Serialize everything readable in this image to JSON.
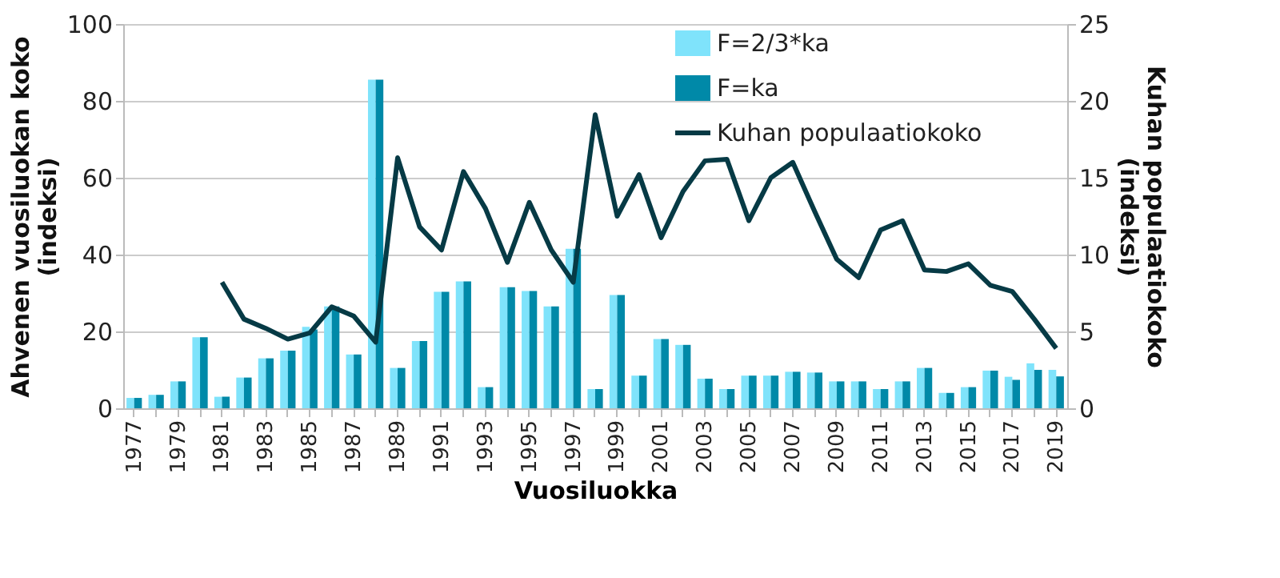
{
  "chart_data": {
    "type": "bar",
    "xlabel": "Vuosiluokka",
    "ylabel": "Ahvenen vuosiluokan koko\n(indeksi)",
    "y2label": "Kuhan populaatiokoko\n(indeksi)",
    "categories": [
      "1977",
      null,
      "1979",
      null,
      "1981",
      null,
      "1983",
      null,
      "1985",
      null,
      "1987",
      null,
      "1989",
      null,
      "1991",
      null,
      "1993",
      null,
      "1995",
      null,
      "1997",
      null,
      "1999",
      null,
      "2001",
      null,
      "2003",
      null,
      "2005",
      null,
      "2007",
      null,
      "2009",
      null,
      "2011",
      null,
      "2013",
      null,
      "2015",
      null,
      "2017",
      null,
      "2019"
    ],
    "series": [
      {
        "name": "F=2/3*ka",
        "color": "#7fe3fb",
        "values": [
          2.7,
          3.5,
          7,
          18.5,
          3,
          8,
          13,
          15,
          21.2,
          26.5,
          14,
          85.5,
          10.5,
          17.5,
          30.3,
          33,
          5.5,
          31.5,
          30.5,
          26.5,
          41.5,
          5,
          29.5,
          8.5,
          18,
          16.5,
          7.7,
          5,
          8.5,
          8.5,
          9.5,
          9.3,
          7,
          7,
          5,
          7,
          10.5,
          4,
          5.5,
          9.8,
          8.2,
          11.7,
          10
        ]
      },
      {
        "name": "F=ka",
        "color": "#0089a8",
        "values": [
          2.7,
          3.5,
          7,
          18.5,
          3,
          8,
          13,
          15,
          20.5,
          26.5,
          14,
          85.5,
          10.5,
          17.5,
          30.3,
          33,
          5.5,
          31.5,
          30.5,
          26.5,
          41.5,
          5,
          29.5,
          8.5,
          18,
          16.5,
          7.7,
          5,
          8.5,
          8.5,
          9.5,
          9.3,
          7,
          7,
          5,
          7,
          10.5,
          4,
          5.5,
          9.8,
          7.4,
          10,
          8.3
        ]
      },
      {
        "name": "Kuhan populaatiokoko",
        "type": "line",
        "axis": "y2",
        "color": "#063a45",
        "values": [
          null,
          null,
          null,
          null,
          8.2,
          5.8,
          5.2,
          4.5,
          4.9,
          6.6,
          6.0,
          4.3,
          16.3,
          11.8,
          10.3,
          15.4,
          13.0,
          9.5,
          13.4,
          10.3,
          8.2,
          19.1,
          12.5,
          15.2,
          11.1,
          14.1,
          16.1,
          16.2,
          12.2,
          15.0,
          16.0,
          12.8,
          9.7,
          8.5,
          11.6,
          12.2,
          9.0,
          8.9,
          9.4,
          8.0,
          7.6,
          5.8,
          3.9
        ]
      }
    ],
    "ylim": [
      0,
      100
    ],
    "yticks": [
      0,
      20,
      40,
      60,
      80,
      100
    ],
    "y2lim": [
      0,
      25
    ],
    "y2ticks": [
      0,
      5,
      10,
      15,
      20,
      25
    ],
    "grid": "y",
    "legend": "top right",
    "line_style": "solid",
    "marker": "none"
  }
}
